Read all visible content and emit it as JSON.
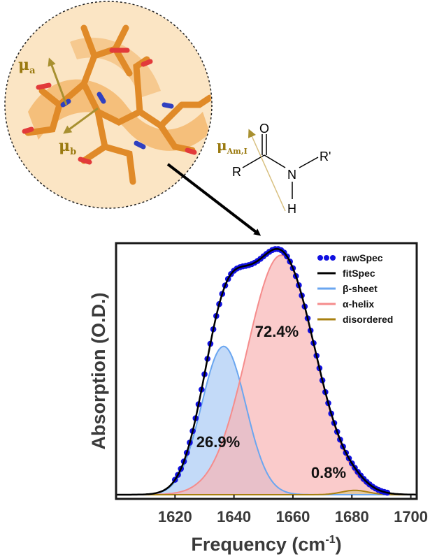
{
  "chart_data": {
    "type": "area",
    "xlabel": "Frequency (cm",
    "xlabel_sup": "-1",
    "xlabel_end": ")",
    "ylabel": "Absorption (O.D.)",
    "xlim": [
      1600,
      1702
    ],
    "ylim": [
      0,
      1.0
    ],
    "xticks": [
      1620,
      1640,
      1660,
      1680,
      1700
    ],
    "legend_position": "top-right",
    "legend": [
      {
        "name": "rawSpec",
        "color": "#1010e0",
        "style": "dots"
      },
      {
        "name": "fitSpec",
        "color": "#000000",
        "style": "line"
      },
      {
        "name": "β-sheet",
        "color": "#6aa6f0",
        "style": "line"
      },
      {
        "name": "α-helix",
        "color": "#f58c8c",
        "style": "line"
      },
      {
        "name": "disordered",
        "color": "#a88010",
        "style": "line"
      }
    ],
    "components": [
      {
        "name": "β-sheet",
        "center": 1636.5,
        "sigma": 7.5,
        "amplitude": 0.61,
        "fill": "#a9cbf5",
        "stroke": "#6aa6f0",
        "percent": "26.9%"
      },
      {
        "name": "α-helix",
        "center": 1656.0,
        "sigma": 11.5,
        "amplitude": 0.985,
        "fill": "#f8b5b5",
        "stroke": "#f58c8c",
        "percent": "72.4%"
      },
      {
        "name": "disordered",
        "center": 1681.0,
        "sigma": 4.5,
        "amplitude": 0.018,
        "fill": "#d8c894",
        "stroke": "#a88010",
        "percent": "0.8%"
      }
    ],
    "raw_x_start": 1620,
    "raw_x_end": 1692,
    "raw_x_step": 1.0
  },
  "molecule": {
    "atom_O": "O",
    "atom_R": "R",
    "atom_N": "N",
    "atom_Rp": "R'",
    "atom_H": "H",
    "mu_am": "μ",
    "mu_am_sub": "Am,I",
    "mu_a": "μ",
    "mu_a_sub": "a",
    "mu_b": "μ",
    "mu_b_sub": "b"
  },
  "colors": {
    "axes": "#1a1a1a",
    "carbon": "#e08a28",
    "oxygen": "#e23a3a",
    "nitrogen": "#3040c0",
    "helix_ribbon": "#f0a040",
    "circle_fill": "#fbe5c4",
    "dipole": "#9a7a10"
  }
}
